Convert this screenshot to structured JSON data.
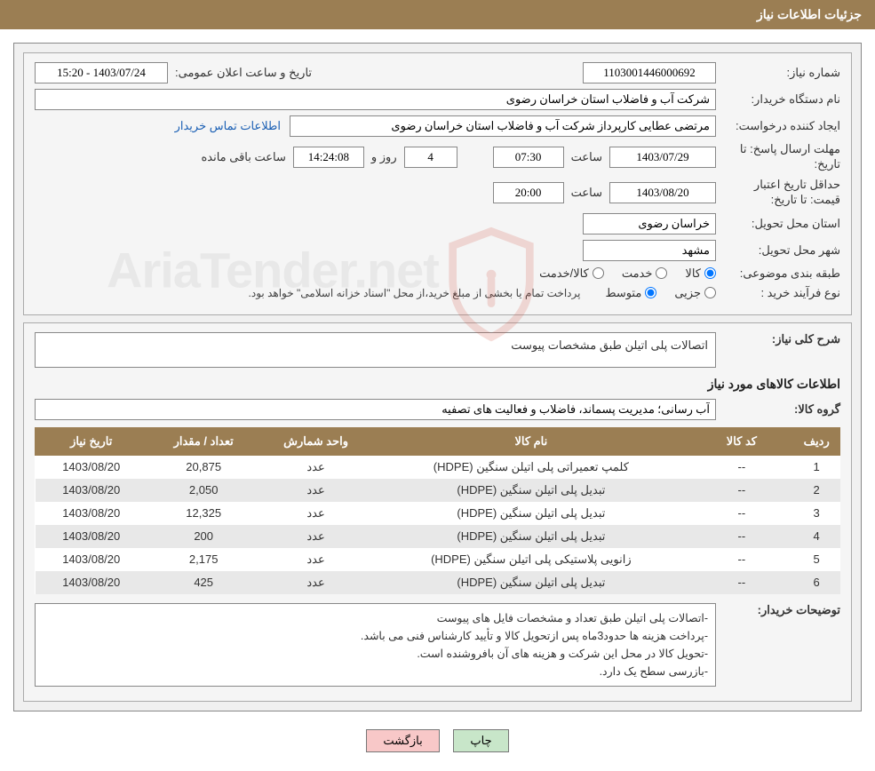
{
  "header": {
    "title": "جزئیات اطلاعات نیاز"
  },
  "form": {
    "need_number_label": "شماره نیاز:",
    "need_number": "1103001446000692",
    "announce_label": "تاریخ و ساعت اعلان عمومی:",
    "announce_value": "1403/07/24 - 15:20",
    "buyer_org_label": "نام دستگاه خریدار:",
    "buyer_org": "شرکت آب و فاضلاب استان خراسان رضوی",
    "requester_label": "ایجاد کننده درخواست:",
    "requester": "مرتضی عطایی کارپرداز شرکت آب و فاضلاب استان خراسان رضوی",
    "contact_link": "اطلاعات تماس خریدار",
    "deadline_label": "مهلت ارسال پاسخ:",
    "to_date_label": "تا تاریخ:",
    "deadline_date": "1403/07/29",
    "time_label": "ساعت",
    "deadline_time": "07:30",
    "days_value": "4",
    "days_and_label": "روز و",
    "remain_time": "14:24:08",
    "remain_suffix": "ساعت باقی مانده",
    "validity_label": "حداقل تاریخ اعتبار قیمت:",
    "validity_date": "1403/08/20",
    "validity_time": "20:00",
    "province_label": "استان محل تحویل:",
    "province": "خراسان رضوی",
    "city_label": "شهر محل تحویل:",
    "city": "مشهد",
    "category_label": "طبقه بندی موضوعی:",
    "cat_goods": "کالا",
    "cat_service": "خدمت",
    "cat_goods_service": "کالا/خدمت",
    "process_label": "نوع فرآیند خرید :",
    "proc_partial": "جزیی",
    "proc_medium": "متوسط",
    "proc_note": "پرداخت تمام یا بخشی از مبلغ خرید،از محل \"اسناد خزانه اسلامی\" خواهد بود."
  },
  "details": {
    "overall_label": "شرح کلی نیاز:",
    "overall_text": "اتصالات پلی اتیلن طبق مشخصات پیوست",
    "goods_info_title": "اطلاعات کالاهای مورد نیاز",
    "group_label": "گروه کالا:",
    "group_value": "آب رسانی؛ مدیریت پسماند، فاضلاب و فعالیت های تصفیه"
  },
  "table": {
    "headers": {
      "row": "ردیف",
      "code": "کد کالا",
      "name": "نام کالا",
      "unit": "واحد شمارش",
      "qty": "تعداد / مقدار",
      "date": "تاریخ نیاز"
    },
    "rows": [
      {
        "idx": "1",
        "code": "--",
        "name": "کلمپ تعمیراتی پلی اتیلن سنگین (HDPE)",
        "unit": "عدد",
        "qty": "20,875",
        "date": "1403/08/20"
      },
      {
        "idx": "2",
        "code": "--",
        "name": "تبدیل پلی اتیلن سنگین (HDPE)",
        "unit": "عدد",
        "qty": "2,050",
        "date": "1403/08/20"
      },
      {
        "idx": "3",
        "code": "--",
        "name": "تبدیل پلی اتیلن سنگین (HDPE)",
        "unit": "عدد",
        "qty": "12,325",
        "date": "1403/08/20"
      },
      {
        "idx": "4",
        "code": "--",
        "name": "تبدیل پلی اتیلن سنگین (HDPE)",
        "unit": "عدد",
        "qty": "200",
        "date": "1403/08/20"
      },
      {
        "idx": "5",
        "code": "--",
        "name": "زانویی پلاستیکی پلی اتیلن سنگین (HDPE)",
        "unit": "عدد",
        "qty": "2,175",
        "date": "1403/08/20"
      },
      {
        "idx": "6",
        "code": "--",
        "name": "تبدیل پلی اتیلن سنگین (HDPE)",
        "unit": "عدد",
        "qty": "425",
        "date": "1403/08/20"
      }
    ]
  },
  "buyer_notes": {
    "label": "توضیحات خریدار:",
    "line1": "-اتصالات پلی اتیلن طبق تعداد و مشخصات فایل های پیوست",
    "line2": "-پرداخت هزینه ها حدود3ماه پس ازتحویل کالا و تأیید کارشناس فنی می باشد.",
    "line3": "-تحویل کالا در محل این شرکت و هزینه های آن بافروشنده است.",
    "line4": "-بازرسی سطح یک دارد."
  },
  "buttons": {
    "print": "چاپ",
    "back": "بازگشت"
  },
  "watermark": {
    "text": "AriaTender.net"
  },
  "colors": {
    "header_bg": "#9b7e53",
    "header_fg": "#ffffff",
    "panel_bg": "#f5f5f5",
    "border": "#888888",
    "link": "#1a5fb4",
    "btn_print_bg": "#c8e6c9",
    "btn_back_bg": "#f8c8c8",
    "row_even_bg": "#e8e8e8",
    "shield_stroke": "#d04a3a"
  }
}
